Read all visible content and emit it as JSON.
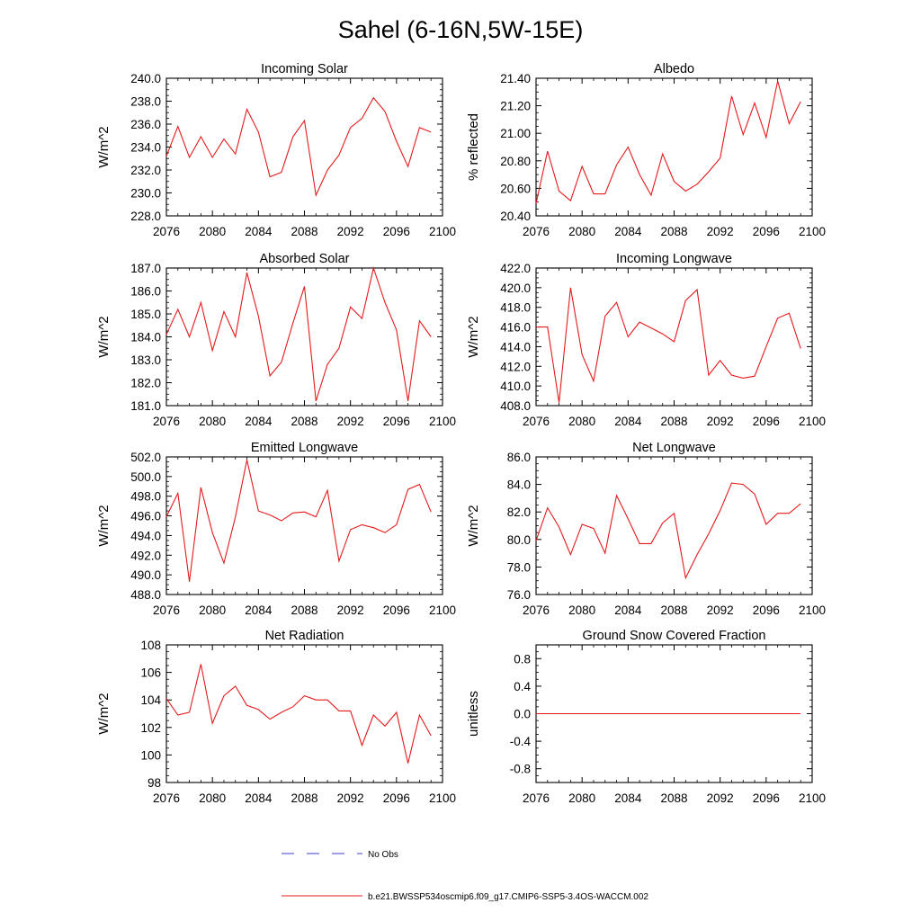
{
  "figure": {
    "title": "Sahel (6-16N,5W-15E)",
    "legend": {
      "obs_label": "No Obs",
      "model_label": "b.e21.BWSSP534oscmip6.f09_g17.CMIP6-SSP5-3.4OS-WACCM.002",
      "obs_color": "#3b3bd6",
      "model_color": "#e41a1c"
    }
  },
  "chart_data": [
    {
      "type": "line",
      "title": "Incoming Solar",
      "ylabel": "W/m^2",
      "xlim": [
        2076,
        2100
      ],
      "xticks": [
        2076,
        2080,
        2084,
        2088,
        2092,
        2096,
        2100
      ],
      "ylim": [
        228,
        240
      ],
      "yticks": [
        228,
        230,
        232,
        234,
        236,
        238,
        240
      ],
      "ytick_labels": [
        "228.0",
        "230.0",
        "232.0",
        "234.0",
        "236.0",
        "238.0",
        "240.0"
      ],
      "yminor": 0.5,
      "series": [
        {
          "name": "b.e21.BWSSP534oscmip6.f09_g17.CMIP6-SSP5-3.4OS-WACCM.002",
          "x": [
            2076,
            2077,
            2078,
            2079,
            2080,
            2081,
            2082,
            2083,
            2084,
            2085,
            2086,
            2087,
            2088,
            2089,
            2090,
            2091,
            2092,
            2093,
            2094,
            2095,
            2096,
            2097,
            2098,
            2099
          ],
          "values": [
            233.2,
            235.8,
            233.1,
            234.9,
            233.1,
            234.7,
            233.4,
            237.3,
            235.3,
            231.4,
            231.8,
            234.9,
            236.3,
            229.8,
            232.0,
            233.3,
            235.7,
            236.5,
            238.3,
            237.1,
            234.5,
            232.3,
            235.7,
            235.3
          ]
        }
      ]
    },
    {
      "type": "line",
      "title": "Albedo",
      "ylabel": "% reflected",
      "xlim": [
        2076,
        2100
      ],
      "xticks": [
        2076,
        2080,
        2084,
        2088,
        2092,
        2096,
        2100
      ],
      "ylim": [
        20.4,
        21.4
      ],
      "yticks": [
        20.4,
        20.6,
        20.8,
        21.0,
        21.2,
        21.4
      ],
      "ytick_labels": [
        "20.40",
        "20.60",
        "20.80",
        "21.00",
        "21.20",
        "21.40"
      ],
      "yminor": 0.05,
      "series": [
        {
          "name": "b.e21.BWSSP534oscmip6.f09_g17.CMIP6-SSP5-3.4OS-WACCM.002",
          "x": [
            2076,
            2077,
            2078,
            2079,
            2080,
            2081,
            2082,
            2083,
            2084,
            2085,
            2086,
            2087,
            2088,
            2089,
            2090,
            2091,
            2092,
            2093,
            2094,
            2095,
            2096,
            2097,
            2098,
            2099
          ],
          "values": [
            20.49,
            20.87,
            20.58,
            20.51,
            20.76,
            20.56,
            20.56,
            20.77,
            20.9,
            20.7,
            20.55,
            20.85,
            20.65,
            20.58,
            20.63,
            20.72,
            20.82,
            21.27,
            20.99,
            21.22,
            20.97,
            21.38,
            21.07,
            21.23
          ]
        }
      ]
    },
    {
      "type": "line",
      "title": "Absorbed Solar",
      "ylabel": "W/m^2",
      "xlim": [
        2076,
        2100
      ],
      "xticks": [
        2076,
        2080,
        2084,
        2088,
        2092,
        2096,
        2100
      ],
      "ylim": [
        181,
        187
      ],
      "yticks": [
        181,
        182,
        183,
        184,
        185,
        186,
        187
      ],
      "ytick_labels": [
        "181.0",
        "182.0",
        "183.0",
        "184.0",
        "185.0",
        "186.0",
        "187.0"
      ],
      "yminor": 0.25,
      "series": [
        {
          "name": "b.e21.BWSSP534oscmip6.f09_g17.CMIP6-SSP5-3.4OS-WACCM.002",
          "x": [
            2076,
            2077,
            2078,
            2079,
            2080,
            2081,
            2082,
            2083,
            2084,
            2085,
            2086,
            2087,
            2088,
            2089,
            2090,
            2091,
            2092,
            2093,
            2094,
            2095,
            2096,
            2097,
            2098,
            2099
          ],
          "values": [
            184.1,
            185.2,
            184.0,
            185.5,
            183.4,
            185.1,
            184.0,
            186.8,
            184.9,
            182.3,
            182.9,
            184.6,
            186.2,
            181.2,
            182.8,
            183.5,
            185.3,
            184.8,
            187.0,
            185.5,
            184.3,
            181.2,
            184.7,
            184.0
          ]
        }
      ]
    },
    {
      "type": "line",
      "title": "Incoming Longwave",
      "ylabel": "W/m^2",
      "xlim": [
        2076,
        2100
      ],
      "xticks": [
        2076,
        2080,
        2084,
        2088,
        2092,
        2096,
        2100
      ],
      "ylim": [
        408,
        422
      ],
      "yticks": [
        408,
        410,
        412,
        414,
        416,
        418,
        420,
        422
      ],
      "ytick_labels": [
        "408.0",
        "410.0",
        "412.0",
        "414.0",
        "416.0",
        "418.0",
        "420.0",
        "422.0"
      ],
      "yminor": 0.5,
      "series": [
        {
          "name": "b.e21.BWSSP534oscmip6.f09_g17.CMIP6-SSP5-3.4OS-WACCM.002",
          "x": [
            2076,
            2077,
            2078,
            2079,
            2080,
            2081,
            2082,
            2083,
            2084,
            2085,
            2086,
            2087,
            2088,
            2089,
            2090,
            2091,
            2092,
            2093,
            2094,
            2095,
            2096,
            2097,
            2098,
            2099
          ],
          "values": [
            416.0,
            416.0,
            408.3,
            420.0,
            413.2,
            410.5,
            417.1,
            418.5,
            415.0,
            416.5,
            415.9,
            415.3,
            414.5,
            418.7,
            419.8,
            411.1,
            412.6,
            411.1,
            410.8,
            411.0,
            414.0,
            416.9,
            417.4,
            413.8
          ]
        }
      ]
    },
    {
      "type": "line",
      "title": "Emitted Longwave",
      "ylabel": "W/m^2",
      "xlim": [
        2076,
        2100
      ],
      "xticks": [
        2076,
        2080,
        2084,
        2088,
        2092,
        2096,
        2100
      ],
      "ylim": [
        488,
        502
      ],
      "yticks": [
        488,
        490,
        492,
        494,
        496,
        498,
        500,
        502
      ],
      "ytick_labels": [
        "488.0",
        "490.0",
        "492.0",
        "494.0",
        "496.0",
        "498.0",
        "500.0",
        "502.0"
      ],
      "yminor": 0.5,
      "series": [
        {
          "name": "b.e21.BWSSP534oscmip6.f09_g17.CMIP6-SSP5-3.4OS-WACCM.002",
          "x": [
            2076,
            2077,
            2078,
            2079,
            2080,
            2081,
            2082,
            2083,
            2084,
            2085,
            2086,
            2087,
            2088,
            2089,
            2090,
            2091,
            2092,
            2093,
            2094,
            2095,
            2096,
            2097,
            2098,
            2099
          ],
          "values": [
            495.9,
            498.3,
            489.3,
            498.9,
            494.3,
            491.2,
            495.9,
            501.7,
            496.5,
            496.1,
            495.5,
            496.3,
            496.4,
            495.9,
            498.6,
            491.4,
            494.6,
            495.1,
            494.8,
            494.3,
            495.1,
            498.7,
            499.2,
            496.4
          ]
        }
      ]
    },
    {
      "type": "line",
      "title": "Net Longwave",
      "ylabel": "W/m^2",
      "xlim": [
        2076,
        2100
      ],
      "xticks": [
        2076,
        2080,
        2084,
        2088,
        2092,
        2096,
        2100
      ],
      "ylim": [
        76,
        86
      ],
      "yticks": [
        76,
        78,
        80,
        82,
        84,
        86
      ],
      "ytick_labels": [
        "76.0",
        "78.0",
        "80.0",
        "82.0",
        "84.0",
        "86.0"
      ],
      "yminor": 0.5,
      "series": [
        {
          "name": "b.e21.BWSSP534oscmip6.f09_g17.CMIP6-SSP5-3.4OS-WACCM.002",
          "x": [
            2076,
            2077,
            2078,
            2079,
            2080,
            2081,
            2082,
            2083,
            2084,
            2085,
            2086,
            2087,
            2088,
            2089,
            2090,
            2091,
            2092,
            2093,
            2094,
            2095,
            2096,
            2097,
            2098,
            2099
          ],
          "values": [
            79.9,
            82.3,
            80.9,
            78.9,
            81.1,
            80.8,
            79.0,
            83.2,
            81.5,
            79.7,
            79.7,
            81.2,
            81.9,
            77.2,
            78.9,
            80.4,
            82.1,
            84.1,
            84.0,
            83.3,
            81.1,
            81.9,
            81.9,
            82.6
          ]
        }
      ]
    },
    {
      "type": "line",
      "title": "Net Radiation",
      "ylabel": "W/m^2",
      "xlim": [
        2076,
        2100
      ],
      "xticks": [
        2076,
        2080,
        2084,
        2088,
        2092,
        2096,
        2100
      ],
      "ylim": [
        98,
        108
      ],
      "yticks": [
        98,
        100,
        102,
        104,
        106,
        108
      ],
      "ytick_labels": [
        "98",
        "100",
        "102",
        "104",
        "106",
        "108"
      ],
      "yminor": 0.5,
      "series": [
        {
          "name": "b.e21.BWSSP534oscmip6.f09_g17.CMIP6-SSP5-3.4OS-WACCM.002",
          "x": [
            2076,
            2077,
            2078,
            2079,
            2080,
            2081,
            2082,
            2083,
            2084,
            2085,
            2086,
            2087,
            2088,
            2089,
            2090,
            2091,
            2092,
            2093,
            2094,
            2095,
            2096,
            2097,
            2098,
            2099
          ],
          "values": [
            104.1,
            102.9,
            103.1,
            106.6,
            102.3,
            104.3,
            105.0,
            103.6,
            103.3,
            102.6,
            103.1,
            103.5,
            104.3,
            104.0,
            104.0,
            103.2,
            103.2,
            100.7,
            102.9,
            102.1,
            103.1,
            99.4,
            102.9,
            101.4
          ]
        }
      ]
    },
    {
      "type": "line",
      "title": "Ground Snow Covered Fraction",
      "ylabel": "unitless",
      "xlim": [
        2076,
        2100
      ],
      "xticks": [
        2076,
        2080,
        2084,
        2088,
        2092,
        2096,
        2100
      ],
      "ylim": [
        -1.0,
        1.0
      ],
      "yticks": [
        -0.8,
        -0.4,
        0.0,
        0.4,
        0.8
      ],
      "ytick_labels": [
        "-0.8",
        "-0.4",
        "0.0",
        "0.4",
        "0.8"
      ],
      "yminor": 0.1,
      "series": [
        {
          "name": "b.e21.BWSSP534oscmip6.f09_g17.CMIP6-SSP5-3.4OS-WACCM.002",
          "x": [
            2076,
            2077,
            2078,
            2079,
            2080,
            2081,
            2082,
            2083,
            2084,
            2085,
            2086,
            2087,
            2088,
            2089,
            2090,
            2091,
            2092,
            2093,
            2094,
            2095,
            2096,
            2097,
            2098,
            2099
          ],
          "values": [
            0,
            0,
            0,
            0,
            0,
            0,
            0,
            0,
            0,
            0,
            0,
            0,
            0,
            0,
            0,
            0,
            0,
            0,
            0,
            0,
            0,
            0,
            0,
            0
          ]
        }
      ]
    }
  ]
}
